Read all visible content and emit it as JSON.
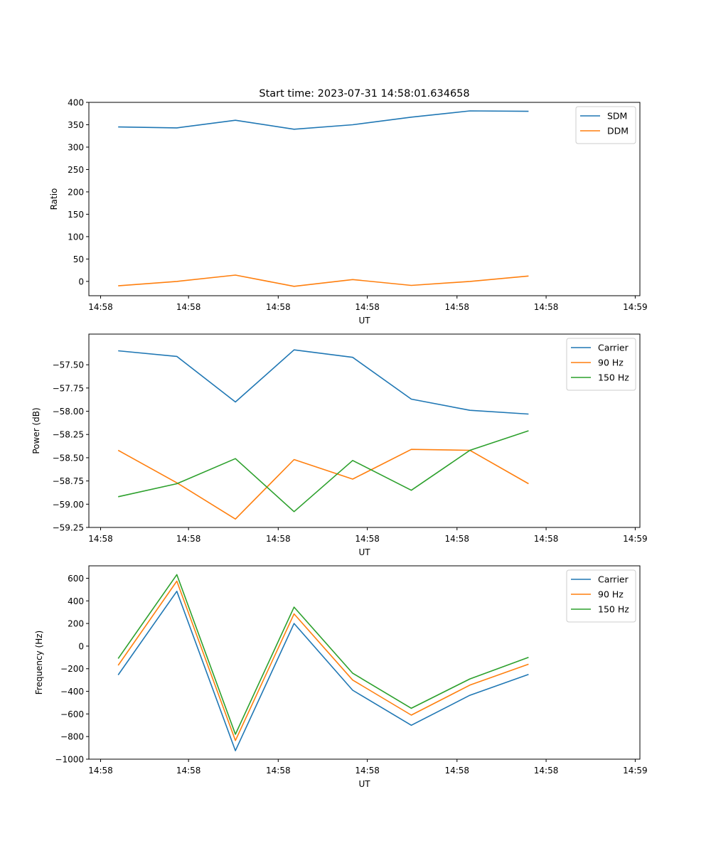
{
  "chart_data": [
    {
      "type": "line",
      "title": "Start time: 2023-07-31 14:58:01.634658",
      "xlabel": "UT",
      "ylabel": "Ratio",
      "xticklabels": [
        "14:58",
        "14:58",
        "14:58",
        "14:58",
        "14:58",
        "14:58",
        "14:59"
      ],
      "xlim": [
        -0.5,
        8.9
      ],
      "ylim": [
        -32,
        400
      ],
      "yticks": [
        0,
        50,
        100,
        150,
        200,
        250,
        300,
        350,
        400
      ],
      "ytick_labels": [
        "0",
        "50",
        "100",
        "150",
        "200",
        "250",
        "300",
        "350",
        "400"
      ],
      "grid": false,
      "legend": "top-right",
      "x": [
        0,
        1,
        2,
        3,
        4,
        5,
        6,
        7
      ],
      "series": [
        {
          "name": "SDM",
          "color": "#1f77b4",
          "values": [
            345,
            343,
            360,
            340,
            350,
            367,
            381,
            380
          ]
        },
        {
          "name": "DDM",
          "color": "#ff7f0e",
          "values": [
            -10,
            0,
            14,
            -11,
            4,
            -9,
            0,
            12
          ]
        }
      ]
    },
    {
      "type": "line",
      "title": "",
      "xlabel": "UT",
      "ylabel": "Power (dB)",
      "xticklabels": [
        "14:58",
        "14:58",
        "14:58",
        "14:58",
        "14:58",
        "14:58",
        "14:59"
      ],
      "xlim": [
        -0.5,
        8.9
      ],
      "ylim": [
        -59.25,
        -57.17
      ],
      "yticks": [
        -59.25,
        -59.0,
        -58.75,
        -58.5,
        -58.25,
        -58.0,
        -57.75,
        -57.5
      ],
      "ytick_labels": [
        "−59.25",
        "−59.00",
        "−58.75",
        "−58.50",
        "−58.25",
        "−58.00",
        "−57.75",
        "−57.50"
      ],
      "grid": false,
      "legend": "top-right",
      "x": [
        0,
        1,
        2,
        3,
        4,
        5,
        6,
        7
      ],
      "series": [
        {
          "name": "Carrier",
          "color": "#1f77b4",
          "values": [
            -57.35,
            -57.41,
            -57.9,
            -57.34,
            -57.42,
            -57.87,
            -57.99,
            -58.03
          ]
        },
        {
          "name": "90 Hz",
          "color": "#ff7f0e",
          "values": [
            -58.42,
            -58.77,
            -59.16,
            -58.52,
            -58.73,
            -58.41,
            -58.42,
            -58.78
          ]
        },
        {
          "name": "150 Hz",
          "color": "#2ca02c",
          "values": [
            -58.92,
            -58.78,
            -58.51,
            -59.08,
            -58.53,
            -58.85,
            -58.42,
            -58.21
          ]
        }
      ]
    },
    {
      "type": "line",
      "title": "",
      "xlabel": "UT",
      "ylabel": "Frequency (Hz)",
      "xticklabels": [
        "14:58",
        "14:58",
        "14:58",
        "14:58",
        "14:58",
        "14:58",
        "14:59"
      ],
      "xlim": [
        -0.5,
        8.9
      ],
      "ylim": [
        -1000,
        710
      ],
      "yticks": [
        -1000,
        -800,
        -600,
        -400,
        -200,
        0,
        200,
        400,
        600
      ],
      "ytick_labels": [
        "−1000",
        "−800",
        "−600",
        "−400",
        "−200",
        "0",
        "200",
        "400",
        "600"
      ],
      "grid": false,
      "legend": "top-right",
      "x": [
        0,
        1,
        2,
        3,
        4,
        5,
        6,
        7
      ],
      "series": [
        {
          "name": "Carrier",
          "color": "#1f77b4",
          "values": [
            -255,
            485,
            -925,
            200,
            -390,
            -700,
            -435,
            -250
          ]
        },
        {
          "name": "90 Hz",
          "color": "#ff7f0e",
          "values": [
            -170,
            575,
            -835,
            285,
            -300,
            -610,
            -345,
            -160
          ]
        },
        {
          "name": "150 Hz",
          "color": "#2ca02c",
          "values": [
            -110,
            632,
            -780,
            345,
            -240,
            -550,
            -290,
            -100
          ]
        }
      ]
    }
  ]
}
